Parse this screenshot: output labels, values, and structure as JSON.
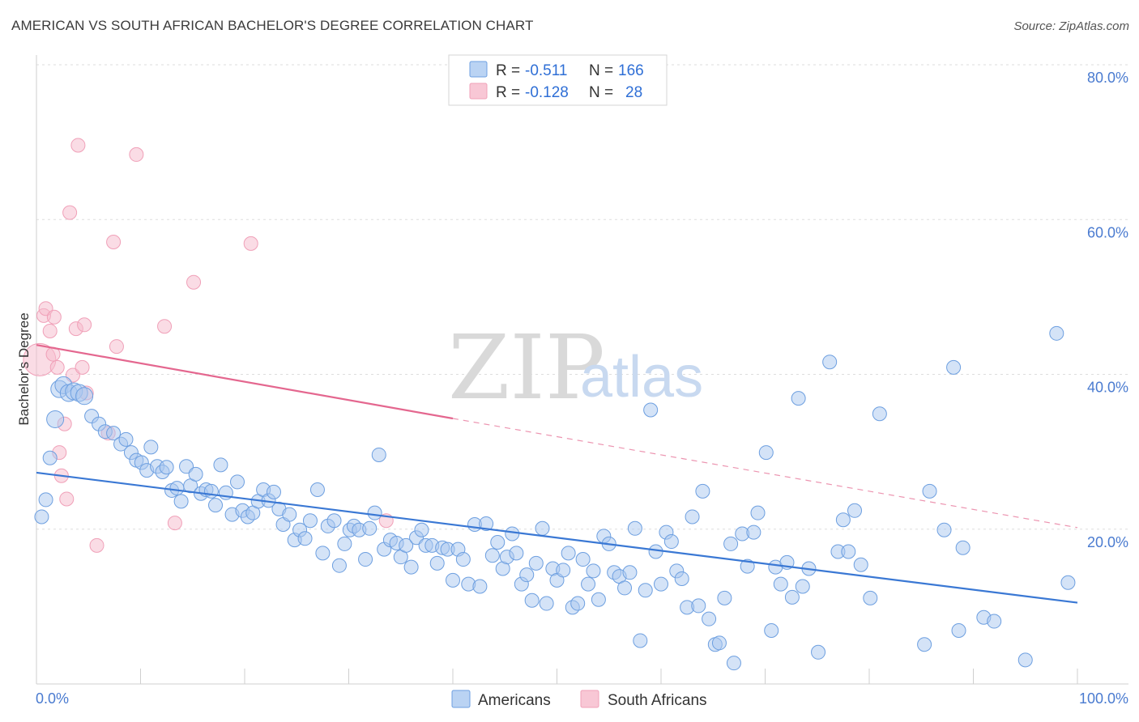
{
  "title": "AMERICAN VS SOUTH AFRICAN BACHELOR'S DEGREE CORRELATION CHART",
  "source": "Source: ZipAtlas.com",
  "watermark": {
    "zip": "ZIP",
    "atlas": "atlas"
  },
  "legend_top": [
    {
      "r_label": "R =",
      "r_value": "-0.511",
      "n_label": "N =",
      "n_value": "166",
      "color": "#a9c8f0"
    },
    {
      "r_label": "R =",
      "r_value": "-0.128",
      "n_label": "N =",
      "n_value": "28",
      "color": "#f6b9cb"
    }
  ],
  "legend_bottom": [
    {
      "label": "Americans",
      "color": "#a9c8f0"
    },
    {
      "label": "South Africans",
      "color": "#f6b9cb"
    }
  ],
  "colors": {
    "blue": "#3a78d4",
    "blue_fill": "#a9c8f0",
    "pink": "#e4678f",
    "pink_fill": "#f6b9cb",
    "grid": "#dddddd",
    "axis_text": "#4a7bd0"
  },
  "chart_data": {
    "type": "scatter",
    "title": "AMERICAN VS SOUTH AFRICAN BACHELOR'S DEGREE CORRELATION CHART",
    "xlabel": "",
    "ylabel": "Bachelor's Degree",
    "xlim": [
      0,
      100
    ],
    "ylim": [
      0,
      80
    ],
    "x_tick_labels": [
      "0.0%",
      "100.0%"
    ],
    "y_tick_labels": [
      "20.0%",
      "40.0%",
      "60.0%",
      "80.0%"
    ],
    "y_ticks": [
      20,
      40,
      60,
      80
    ],
    "series": [
      {
        "name": "Americans",
        "r": -0.511,
        "n": 166,
        "trend": {
          "x": [
            0,
            100
          ],
          "y": [
            27.3,
            10.5
          ]
        },
        "points": [
          [
            0.5,
            21.6
          ],
          [
            0.9,
            23.8
          ],
          [
            1.3,
            29.2
          ],
          [
            1.8,
            34.2
          ],
          [
            2.2,
            38.1
          ],
          [
            2.6,
            38.6
          ],
          [
            3.1,
            37.6
          ],
          [
            3.6,
            37.8
          ],
          [
            4.1,
            37.6
          ],
          [
            4.6,
            37.2
          ],
          [
            5.3,
            34.6
          ],
          [
            6.0,
            33.6
          ],
          [
            6.6,
            32.6
          ],
          [
            7.4,
            32.4
          ],
          [
            8.1,
            31.0
          ],
          [
            8.6,
            31.6
          ],
          [
            9.1,
            29.9
          ],
          [
            9.6,
            28.9
          ],
          [
            10.1,
            28.6
          ],
          [
            10.6,
            27.6
          ],
          [
            11.0,
            30.6
          ],
          [
            11.6,
            28.1
          ],
          [
            12.1,
            27.4
          ],
          [
            12.5,
            28.0
          ],
          [
            13.0,
            25.0
          ],
          [
            13.5,
            25.3
          ],
          [
            13.9,
            23.6
          ],
          [
            14.4,
            28.1
          ],
          [
            14.8,
            25.6
          ],
          [
            15.3,
            27.1
          ],
          [
            15.8,
            24.6
          ],
          [
            16.3,
            25.1
          ],
          [
            16.8,
            24.9
          ],
          [
            17.2,
            23.1
          ],
          [
            17.7,
            28.3
          ],
          [
            18.2,
            24.7
          ],
          [
            18.8,
            21.9
          ],
          [
            19.3,
            26.1
          ],
          [
            19.8,
            22.4
          ],
          [
            20.3,
            21.6
          ],
          [
            20.8,
            22.1
          ],
          [
            21.3,
            23.6
          ],
          [
            21.8,
            25.1
          ],
          [
            22.3,
            23.7
          ],
          [
            22.8,
            24.8
          ],
          [
            23.3,
            22.6
          ],
          [
            23.7,
            20.6
          ],
          [
            24.3,
            21.9
          ],
          [
            24.8,
            18.6
          ],
          [
            25.3,
            19.9
          ],
          [
            25.8,
            18.8
          ],
          [
            26.3,
            21.1
          ],
          [
            27.0,
            25.1
          ],
          [
            27.5,
            16.9
          ],
          [
            28.0,
            20.4
          ],
          [
            28.6,
            21.1
          ],
          [
            29.1,
            15.3
          ],
          [
            29.6,
            18.1
          ],
          [
            30.1,
            19.9
          ],
          [
            30.5,
            20.4
          ],
          [
            31.0,
            19.9
          ],
          [
            31.6,
            16.1
          ],
          [
            32.0,
            20.1
          ],
          [
            32.5,
            22.1
          ],
          [
            32.9,
            29.6
          ],
          [
            33.4,
            17.4
          ],
          [
            34.0,
            18.6
          ],
          [
            34.6,
            18.2
          ],
          [
            35.0,
            16.4
          ],
          [
            35.5,
            17.9
          ],
          [
            36.0,
            15.1
          ],
          [
            36.5,
            18.9
          ],
          [
            37.0,
            19.9
          ],
          [
            37.4,
            17.9
          ],
          [
            38.0,
            17.9
          ],
          [
            38.5,
            15.6
          ],
          [
            39.0,
            17.6
          ],
          [
            39.5,
            17.4
          ],
          [
            40.0,
            13.4
          ],
          [
            40.5,
            17.4
          ],
          [
            41.0,
            16.1
          ],
          [
            41.5,
            12.9
          ],
          [
            42.1,
            20.6
          ],
          [
            42.6,
            12.6
          ],
          [
            43.2,
            20.7
          ],
          [
            43.8,
            16.6
          ],
          [
            44.3,
            18.3
          ],
          [
            44.8,
            14.9
          ],
          [
            45.2,
            16.4
          ],
          [
            45.7,
            19.4
          ],
          [
            46.1,
            16.9
          ],
          [
            46.6,
            12.9
          ],
          [
            47.1,
            14.1
          ],
          [
            47.6,
            10.8
          ],
          [
            48.0,
            15.6
          ],
          [
            48.6,
            20.1
          ],
          [
            49.0,
            10.4
          ],
          [
            49.6,
            14.9
          ],
          [
            50.0,
            13.4
          ],
          [
            50.6,
            14.7
          ],
          [
            51.1,
            16.9
          ],
          [
            51.5,
            9.9
          ],
          [
            52.0,
            10.4
          ],
          [
            52.5,
            16.1
          ],
          [
            53.0,
            12.9
          ],
          [
            53.5,
            14.6
          ],
          [
            54.0,
            10.9
          ],
          [
            54.5,
            19.1
          ],
          [
            55.0,
            18.1
          ],
          [
            55.5,
            14.4
          ],
          [
            56.0,
            13.9
          ],
          [
            56.5,
            12.4
          ],
          [
            57.0,
            14.4
          ],
          [
            57.5,
            20.1
          ],
          [
            58.0,
            5.6
          ],
          [
            58.5,
            12.1
          ],
          [
            59.0,
            35.4
          ],
          [
            59.5,
            17.1
          ],
          [
            60.0,
            12.9
          ],
          [
            60.5,
            19.6
          ],
          [
            61.0,
            18.4
          ],
          [
            61.5,
            14.6
          ],
          [
            62.0,
            13.6
          ],
          [
            62.5,
            9.9
          ],
          [
            63.0,
            21.6
          ],
          [
            63.6,
            10.1
          ],
          [
            64.0,
            24.9
          ],
          [
            64.6,
            8.4
          ],
          [
            65.2,
            5.1
          ],
          [
            65.6,
            5.3
          ],
          [
            66.1,
            11.1
          ],
          [
            66.7,
            18.1
          ],
          [
            67.0,
            2.7
          ],
          [
            67.8,
            19.4
          ],
          [
            68.3,
            15.2
          ],
          [
            68.9,
            19.6
          ],
          [
            69.3,
            22.1
          ],
          [
            70.1,
            29.9
          ],
          [
            70.6,
            6.9
          ],
          [
            71.0,
            15.1
          ],
          [
            71.5,
            12.9
          ],
          [
            72.1,
            15.7
          ],
          [
            72.6,
            11.2
          ],
          [
            73.2,
            36.9
          ],
          [
            73.6,
            12.6
          ],
          [
            74.2,
            14.9
          ],
          [
            75.1,
            4.1
          ],
          [
            76.2,
            41.6
          ],
          [
            77.0,
            17.1
          ],
          [
            77.5,
            21.2
          ],
          [
            78.0,
            17.1
          ],
          [
            78.6,
            22.4
          ],
          [
            79.2,
            15.4
          ],
          [
            80.1,
            11.1
          ],
          [
            81.0,
            34.9
          ],
          [
            85.3,
            5.1
          ],
          [
            85.8,
            24.9
          ],
          [
            87.2,
            19.9
          ],
          [
            88.1,
            40.9
          ],
          [
            88.6,
            6.9
          ],
          [
            89.0,
            17.6
          ],
          [
            91.0,
            8.6
          ],
          [
            92.0,
            8.1
          ],
          [
            95.0,
            3.1
          ],
          [
            98.0,
            45.3
          ],
          [
            99.1,
            13.1
          ]
        ]
      },
      {
        "name": "South Africans",
        "r": -0.128,
        "n": 28,
        "trend": {
          "x": [
            0,
            40
          ],
          "y": [
            43.8,
            34.3
          ]
        },
        "trend_dashed": {
          "x": [
            40,
            100
          ],
          "y": [
            34.3,
            20.2
          ]
        },
        "points": [
          [
            0.3,
            41.9
          ],
          [
            0.7,
            47.6
          ],
          [
            0.9,
            48.5
          ],
          [
            1.3,
            45.6
          ],
          [
            1.6,
            42.6
          ],
          [
            1.7,
            47.4
          ],
          [
            2.0,
            40.9
          ],
          [
            2.2,
            29.9
          ],
          [
            2.4,
            26.9
          ],
          [
            2.7,
            33.6
          ],
          [
            2.9,
            23.9
          ],
          [
            3.2,
            60.9
          ],
          [
            3.5,
            39.9
          ],
          [
            3.8,
            45.9
          ],
          [
            4.0,
            69.6
          ],
          [
            4.4,
            40.9
          ],
          [
            4.6,
            46.4
          ],
          [
            4.8,
            37.6
          ],
          [
            5.8,
            17.9
          ],
          [
            6.9,
            32.4
          ],
          [
            7.4,
            57.1
          ],
          [
            7.7,
            43.6
          ],
          [
            9.6,
            68.4
          ],
          [
            12.3,
            46.2
          ],
          [
            13.3,
            20.8
          ],
          [
            15.1,
            51.9
          ],
          [
            20.6,
            56.9
          ],
          [
            33.6,
            21.1
          ]
        ]
      }
    ]
  }
}
